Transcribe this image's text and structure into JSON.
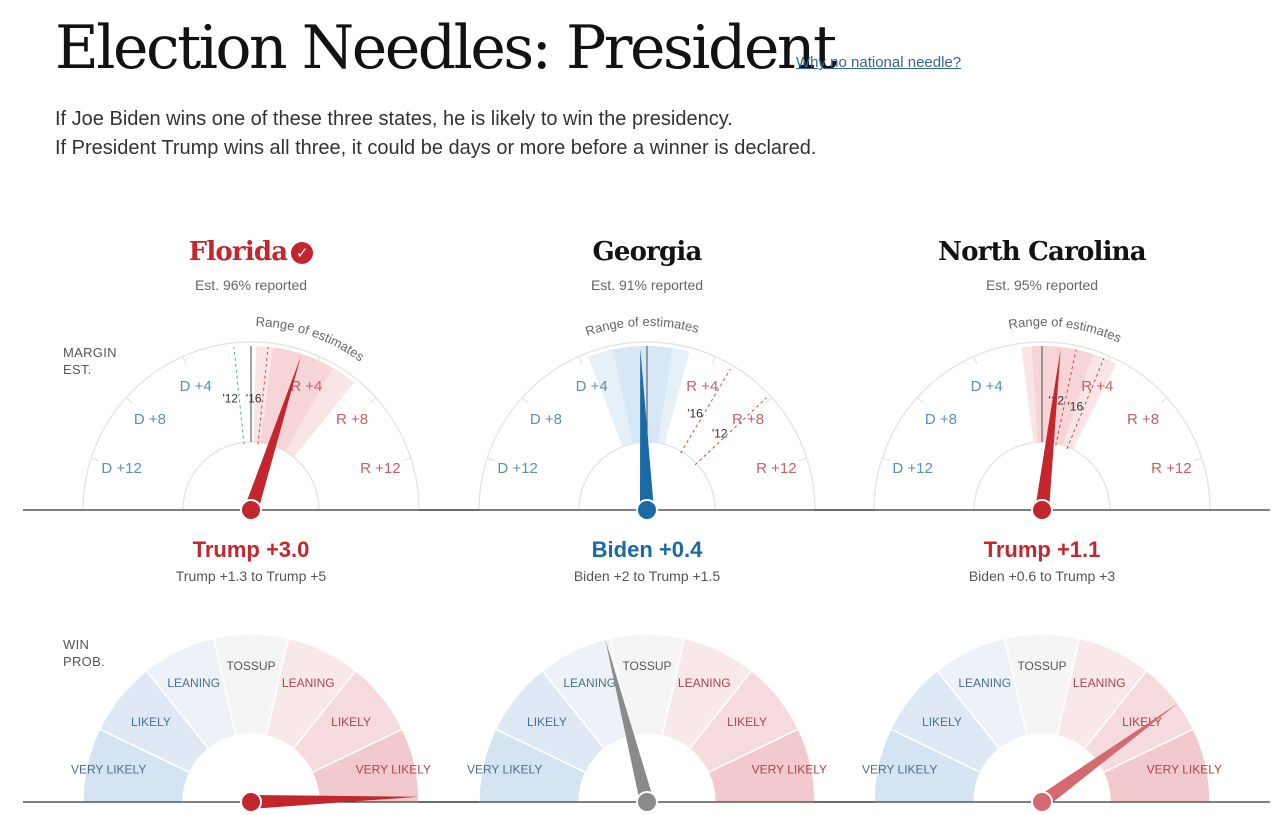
{
  "header": {
    "title": "Election Needles: President",
    "link": "Why no national needle?"
  },
  "dek": {
    "line1": "If Joe Biden wins one of these three states, he is likely to win the presidency.",
    "line2": "If President Trump wins all three, it could be days or more before a winner is declared."
  },
  "labels": {
    "margin_l1": "MARGIN",
    "margin_l2": "EST.",
    "win_l1": "WIN",
    "win_l2": "PROB.",
    "range": "Range of estimates"
  },
  "colors": {
    "red": "#c4262e",
    "blue": "#1a6aa5",
    "gray": "#8a8a8a",
    "dem_text": "#5b8fb8",
    "rep_text": "#c96066",
    "pale_red": "#f7d3d5",
    "pale_blue": "#d6e6f4"
  },
  "chart_data": [
    {
      "type": "gauge",
      "state": "Florida",
      "called": true,
      "reported": "Est. 96% reported",
      "needle_color": "red",
      "estimate_text": "Trump +3.0",
      "range_text": "Trump +1.3 to Trump +5",
      "margin": {
        "ticks": [
          "D +12",
          "D +8",
          "D +4",
          "R +4",
          "R +8",
          "R +12"
        ],
        "estimate": 3.0,
        "range": [
          1.3,
          5
        ],
        "outer_range": [
          0.3,
          6.5
        ],
        "references": [
          {
            "label": "'12",
            "value": -1.0
          },
          {
            "label": "'16",
            "value": 1.0
          }
        ]
      },
      "win_prob": {
        "zones": [
          "VERY LIKELY",
          "LIKELY",
          "LEANING",
          "TOSSUP",
          "LEANING",
          "LIKELY",
          "VERY LIKELY"
        ],
        "needle": 0.99
      }
    },
    {
      "type": "gauge",
      "state": "Georgia",
      "called": false,
      "reported": "Est. 91% reported",
      "needle_color": "blue",
      "estimate_text": "Biden +0.4",
      "range_text": "Biden +2 to Trump +1.5",
      "margin": {
        "ticks": [
          "D +12",
          "D +8",
          "D +4",
          "R +4",
          "R +8",
          "R +12"
        ],
        "estimate": -0.4,
        "range": [
          -2,
          1.5
        ],
        "outer_range": [
          -3.5,
          2.5
        ],
        "references": [
          {
            "label": "'16",
            "value": 5.1
          },
          {
            "label": "'12",
            "value": 7.8
          }
        ]
      },
      "win_prob": {
        "zones": [
          "VERY LIKELY",
          "LIKELY",
          "LEANING",
          "TOSSUP",
          "LEANING",
          "LIKELY",
          "VERY LIKELY"
        ],
        "needle": 0.42
      }
    },
    {
      "type": "gauge",
      "state": "North Carolina",
      "called": false,
      "reported": "Est. 95% reported",
      "needle_color": "red",
      "estimate_text": "Trump +1.1",
      "range_text": "Biden +0.6 to Trump +3",
      "margin": {
        "ticks": [
          "D +12",
          "D +8",
          "D +4",
          "R +4",
          "R +8",
          "R +12"
        ],
        "estimate": 1.1,
        "range": [
          -0.6,
          3
        ],
        "outer_range": [
          -1.2,
          4.5
        ],
        "references": [
          {
            "label": "'12",
            "value": 2.0
          },
          {
            "label": "'16",
            "value": 3.7
          }
        ]
      },
      "win_prob": {
        "zones": [
          "VERY LIKELY",
          "LIKELY",
          "LEANING",
          "TOSSUP",
          "LEANING",
          "LIKELY",
          "VERY LIKELY"
        ],
        "needle": 0.8
      }
    }
  ]
}
